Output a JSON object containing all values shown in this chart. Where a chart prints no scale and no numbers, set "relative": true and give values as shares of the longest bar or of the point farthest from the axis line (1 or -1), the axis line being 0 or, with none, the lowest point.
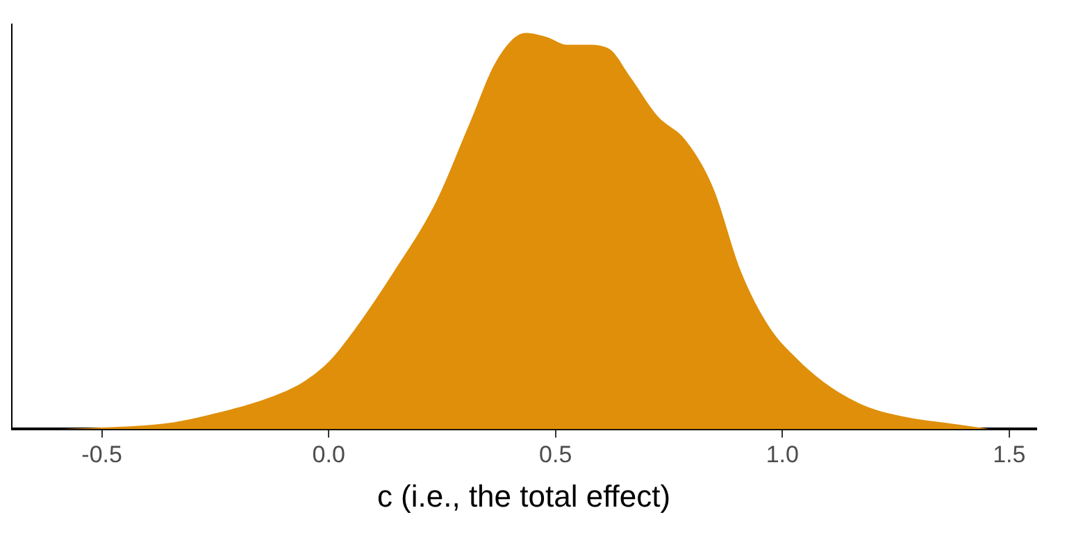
{
  "chart_data": {
    "type": "area",
    "xlabel": "c (i.e., the total effect)",
    "relative": true,
    "tick_labels": "x",
    "grid": false,
    "legend": false,
    "xlim": [
      -0.7,
      1.56
    ],
    "xticks": [
      -0.5,
      {
        "value": 0,
        "label": "0.0"
      },
      0.5,
      {
        "value": 1,
        "label": "1.0"
      },
      1.5
    ],
    "series": [
      {
        "color": "#df8f09",
        "x": [
          -0.6,
          -0.5,
          -0.35,
          -0.25,
          -0.13,
          -0.055,
          0,
          0.05,
          0.145,
          0.235,
          0.31,
          0.37,
          0.434,
          0.48,
          0.526,
          0.57,
          0.618,
          0.664,
          0.725,
          0.786,
          0.847,
          0.908,
          0.97,
          1.03,
          1.09,
          1.18,
          1.275,
          1.36,
          1.46
        ],
        "values": [
          0,
          0.004,
          0.016,
          0.04,
          0.08,
          0.12,
          0.17,
          0.24,
          0.4,
          0.57,
          0.77,
          0.93,
          1,
          0.99,
          0.97,
          0.97,
          0.96,
          0.89,
          0.79,
          0.73,
          0.61,
          0.4,
          0.26,
          0.18,
          0.12,
          0.06,
          0.03,
          0.016,
          0
        ]
      }
    ]
  }
}
